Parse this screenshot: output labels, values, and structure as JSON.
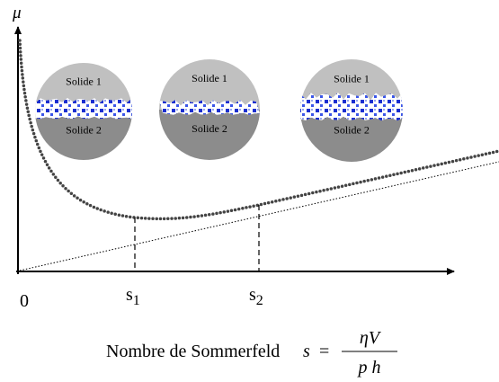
{
  "axes": {
    "y_label": "μ",
    "origin": "0"
  },
  "marks": [
    {
      "label": "s",
      "subscript": "1"
    },
    {
      "label": "s",
      "subscript": "2"
    }
  ],
  "x_label": "Nombre de Sommerfeld",
  "formula": {
    "lhs": "s",
    "eq": "=",
    "numerator": "ηV",
    "denominator": "p h"
  },
  "insets": [
    {
      "top": "Solide 1",
      "bottom": "Solide 2"
    },
    {
      "top": "Solide 1",
      "bottom": "Solide 2"
    },
    {
      "top": "Solide 1",
      "bottom": "Solide 2"
    }
  ]
}
